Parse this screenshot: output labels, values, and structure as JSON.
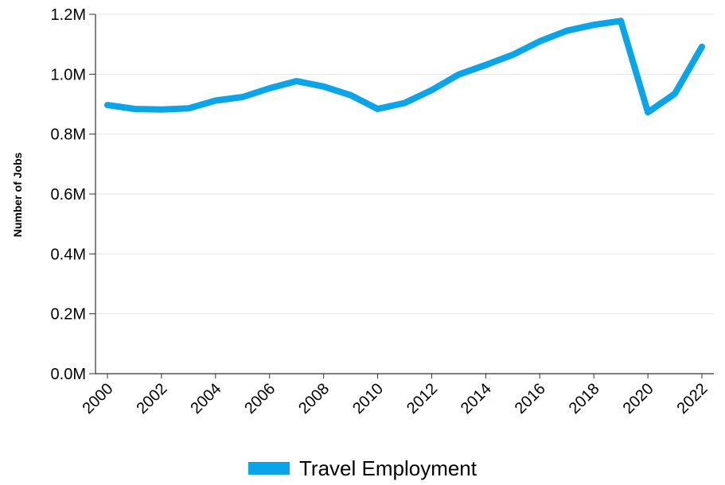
{
  "colors": {
    "series": "#0AA5E8",
    "grid": "#E6E6E6",
    "axis": "#333333"
  },
  "chart_data": {
    "type": "line",
    "title": "",
    "xlabel": "",
    "ylabel": "Number of Jobs",
    "x": [
      2000,
      2001,
      2002,
      2003,
      2004,
      2005,
      2006,
      2007,
      2008,
      2009,
      2010,
      2011,
      2012,
      2013,
      2014,
      2015,
      2016,
      2017,
      2018,
      2019,
      2020,
      2021,
      2022
    ],
    "series": [
      {
        "name": "Travel Employment",
        "values": [
          897000,
          884000,
          882000,
          886000,
          912000,
          924000,
          953000,
          977000,
          959000,
          930000,
          884000,
          904000,
          947000,
          999000,
          1031000,
          1065000,
          1110000,
          1145000,
          1165000,
          1178000,
          873000,
          935000,
          1092000
        ]
      }
    ],
    "ylim": [
      0,
      1200000
    ],
    "xlim": [
      2000,
      2022
    ],
    "y_ticks": [
      "0.0M",
      "0.2M",
      "0.4M",
      "0.6M",
      "0.8M",
      "1.0M",
      "1.2M"
    ],
    "x_ticks": [
      "2000",
      "2002",
      "2004",
      "2006",
      "2008",
      "2010",
      "2012",
      "2014",
      "2016",
      "2018",
      "2020",
      "2022"
    ],
    "grid": true,
    "legend_position": "bottom-center"
  }
}
